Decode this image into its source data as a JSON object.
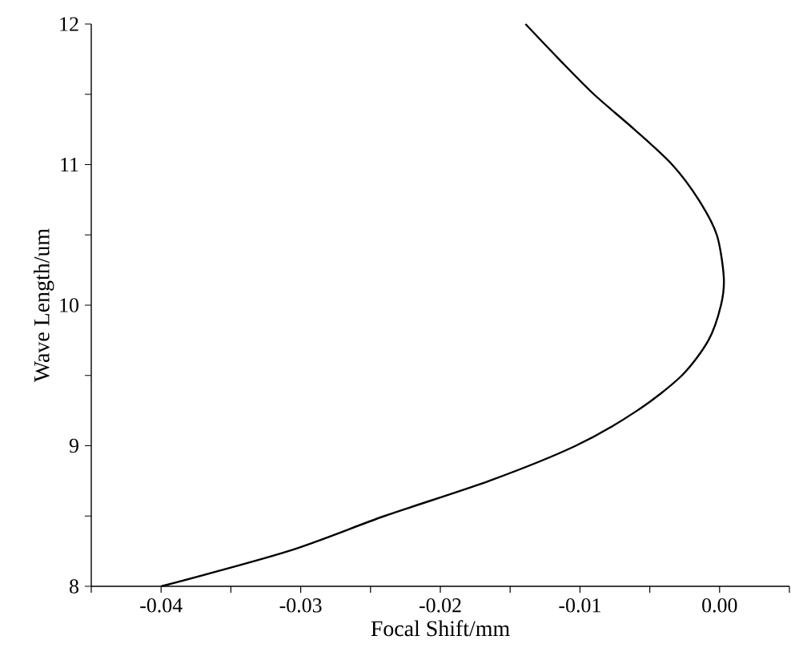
{
  "chart_data": {
    "type": "line",
    "xlabel": "Focal Shift/mm",
    "ylabel": "Wave Length/um",
    "xlim": [
      -0.045,
      0.005
    ],
    "ylim": [
      8,
      12
    ],
    "xticks": [
      {
        "value": -0.045,
        "label": null
      },
      {
        "value": -0.04,
        "label": "-0.04"
      },
      {
        "value": -0.035,
        "label": null
      },
      {
        "value": -0.03,
        "label": "-0.03"
      },
      {
        "value": -0.025,
        "label": null
      },
      {
        "value": -0.02,
        "label": "-0.02"
      },
      {
        "value": -0.015,
        "label": null
      },
      {
        "value": -0.01,
        "label": "-0.01"
      },
      {
        "value": -0.005,
        "label": null
      },
      {
        "value": 0,
        "label": "0.00"
      },
      {
        "value": 0.005,
        "label": null
      }
    ],
    "yticks": [
      8,
      {
        "value": 8.5,
        "label": null
      },
      9,
      {
        "value": 9.5,
        "label": null
      },
      10,
      {
        "value": 10.5,
        "label": null
      },
      11,
      {
        "value": 11.5,
        "label": null
      },
      12
    ],
    "grid": false,
    "series": [
      {
        "color": "#000000",
        "x": [
          -0.04,
          -0.0309,
          -0.024,
          -0.0165,
          -0.0103,
          -0.0059,
          -0.0027,
          -0.0008,
          0.0001,
          0.0003,
          -0.0002,
          -0.0015,
          -0.0034,
          -0.0061,
          -0.009,
          -0.0115,
          -0.0139
        ],
        "values": [
          8,
          8.25,
          8.5,
          8.75,
          9,
          9.25,
          9.5,
          9.75,
          10,
          10.2,
          10.5,
          10.75,
          11,
          11.25,
          11.5,
          11.75,
          12
        ]
      }
    ]
  }
}
